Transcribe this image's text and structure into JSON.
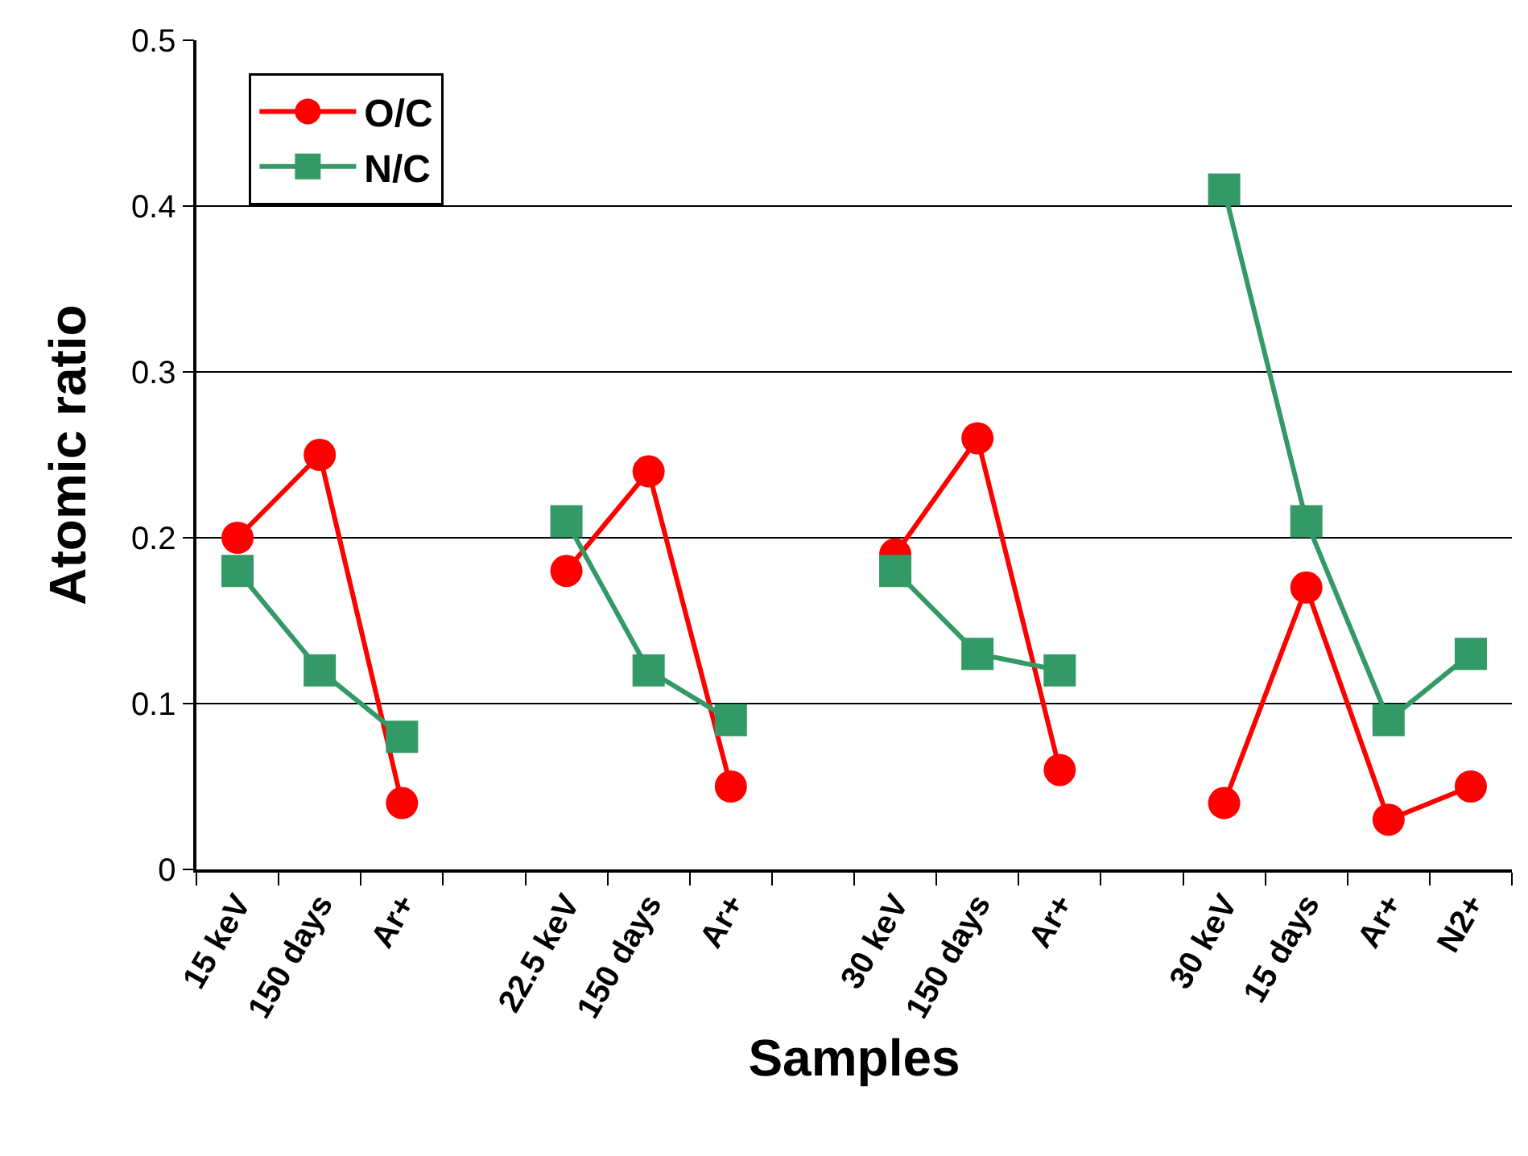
{
  "chart_data": {
    "type": "line",
    "xlabel": "Samples",
    "ylabel": "Atomic ratio",
    "categories": [
      "15 keV",
      "150 days",
      "Ar+",
      null,
      "22.5 keV",
      "150 days",
      "Ar+",
      null,
      "30 keV",
      "150 days",
      "Ar+",
      null,
      "30 keV",
      "15 days",
      "Ar+",
      "N2+"
    ],
    "series": [
      {
        "name": "O/C",
        "color": "#ff0000",
        "marker": "circle",
        "values": [
          0.2,
          0.25,
          0.04,
          null,
          0.18,
          0.24,
          0.05,
          null,
          0.19,
          0.26,
          0.06,
          null,
          0.04,
          0.17,
          0.03,
          0.05
        ]
      },
      {
        "name": "N/C",
        "color": "#339966",
        "marker": "square",
        "values": [
          0.18,
          0.12,
          0.08,
          null,
          0.21,
          0.12,
          0.09,
          null,
          0.18,
          0.13,
          0.12,
          null,
          0.41,
          0.21,
          0.09,
          0.13
        ]
      }
    ],
    "ylim": [
      0,
      0.5
    ],
    "yticks": [
      0,
      0.1,
      0.2,
      0.3,
      0.4,
      0.5
    ],
    "grid": "y",
    "legend": "top left"
  }
}
